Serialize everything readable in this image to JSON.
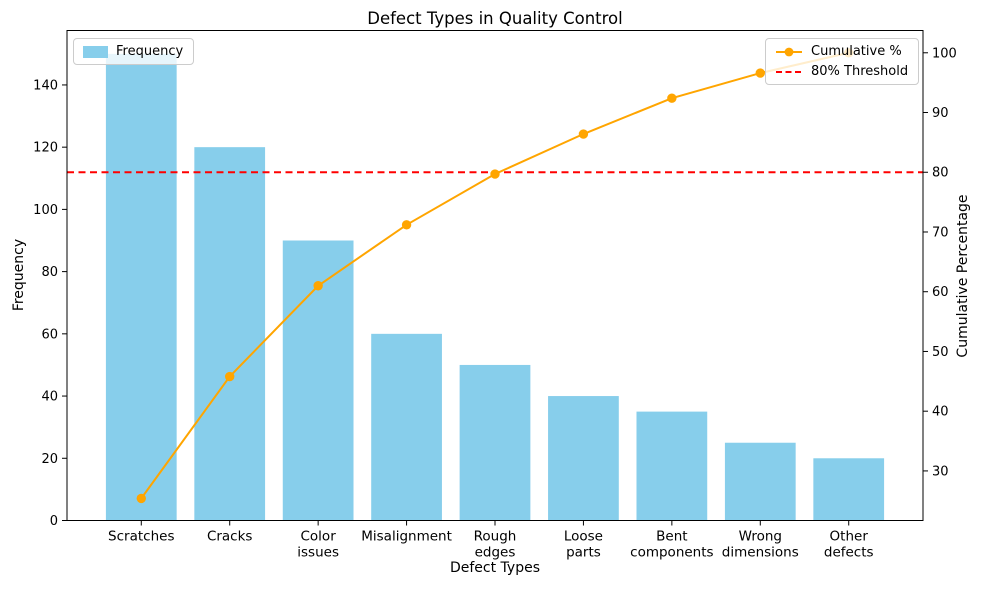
{
  "chart_data": {
    "type": "pareto (bar + line)",
    "title": "Defect Types in Quality Control",
    "xlabel": "Defect Types",
    "ylabel_left": "Frequency",
    "ylabel_right": "Cumulative Percentage",
    "categories": [
      "Scratches",
      "Cracks",
      "Color issues",
      "Misalignment",
      "Rough edges",
      "Loose parts",
      "Bent components",
      "Wrong dimensions",
      "Other defects"
    ],
    "category_label_lines": [
      [
        "Scratches"
      ],
      [
        "Cracks"
      ],
      [
        "Color",
        "issues"
      ],
      [
        "Misalignment"
      ],
      [
        "Rough",
        "edges"
      ],
      [
        "Loose",
        "parts"
      ],
      [
        "Bent",
        "components"
      ],
      [
        "Wrong",
        "dimensions"
      ],
      [
        "Other",
        "defects"
      ]
    ],
    "series": [
      {
        "name": "Frequency",
        "type": "bar",
        "axis": "left",
        "color": "#87CEEB",
        "values": [
          150,
          120,
          90,
          60,
          50,
          40,
          35,
          25,
          20
        ]
      },
      {
        "name": "Cumulative %",
        "type": "line",
        "axis": "right",
        "color": "#FFA500",
        "values": [
          25.4,
          45.8,
          61.0,
          71.2,
          79.7,
          86.4,
          92.4,
          96.6,
          100.0
        ]
      }
    ],
    "threshold": {
      "label": "80% Threshold",
      "value": 80,
      "color": "#FF0000",
      "style": "dashed"
    },
    "axes": {
      "left": {
        "ticks": [
          0,
          20,
          40,
          60,
          80,
          100,
          120,
          140
        ],
        "lim": [
          0,
          157.5
        ]
      },
      "right": {
        "ticks": [
          30,
          40,
          50,
          60,
          70,
          80,
          90,
          100
        ],
        "lim": [
          21.7,
          103.73
        ]
      },
      "x": {
        "lim": [
          -0.84,
          8.84
        ]
      }
    },
    "legend_left": {
      "items": [
        {
          "label": "Frequency",
          "swatch": "bar",
          "color": "#87CEEB"
        }
      ]
    },
    "legend_right": {
      "items": [
        {
          "label": "Cumulative %",
          "swatch": "line-marker",
          "color": "#FFA500"
        },
        {
          "label": "80% Threshold",
          "swatch": "dashed-line",
          "color": "#FF0000"
        }
      ]
    },
    "layout": {
      "grid": false,
      "legend_left_position": "upper left",
      "legend_right_position": "upper right",
      "background": "#ffffff"
    }
  }
}
